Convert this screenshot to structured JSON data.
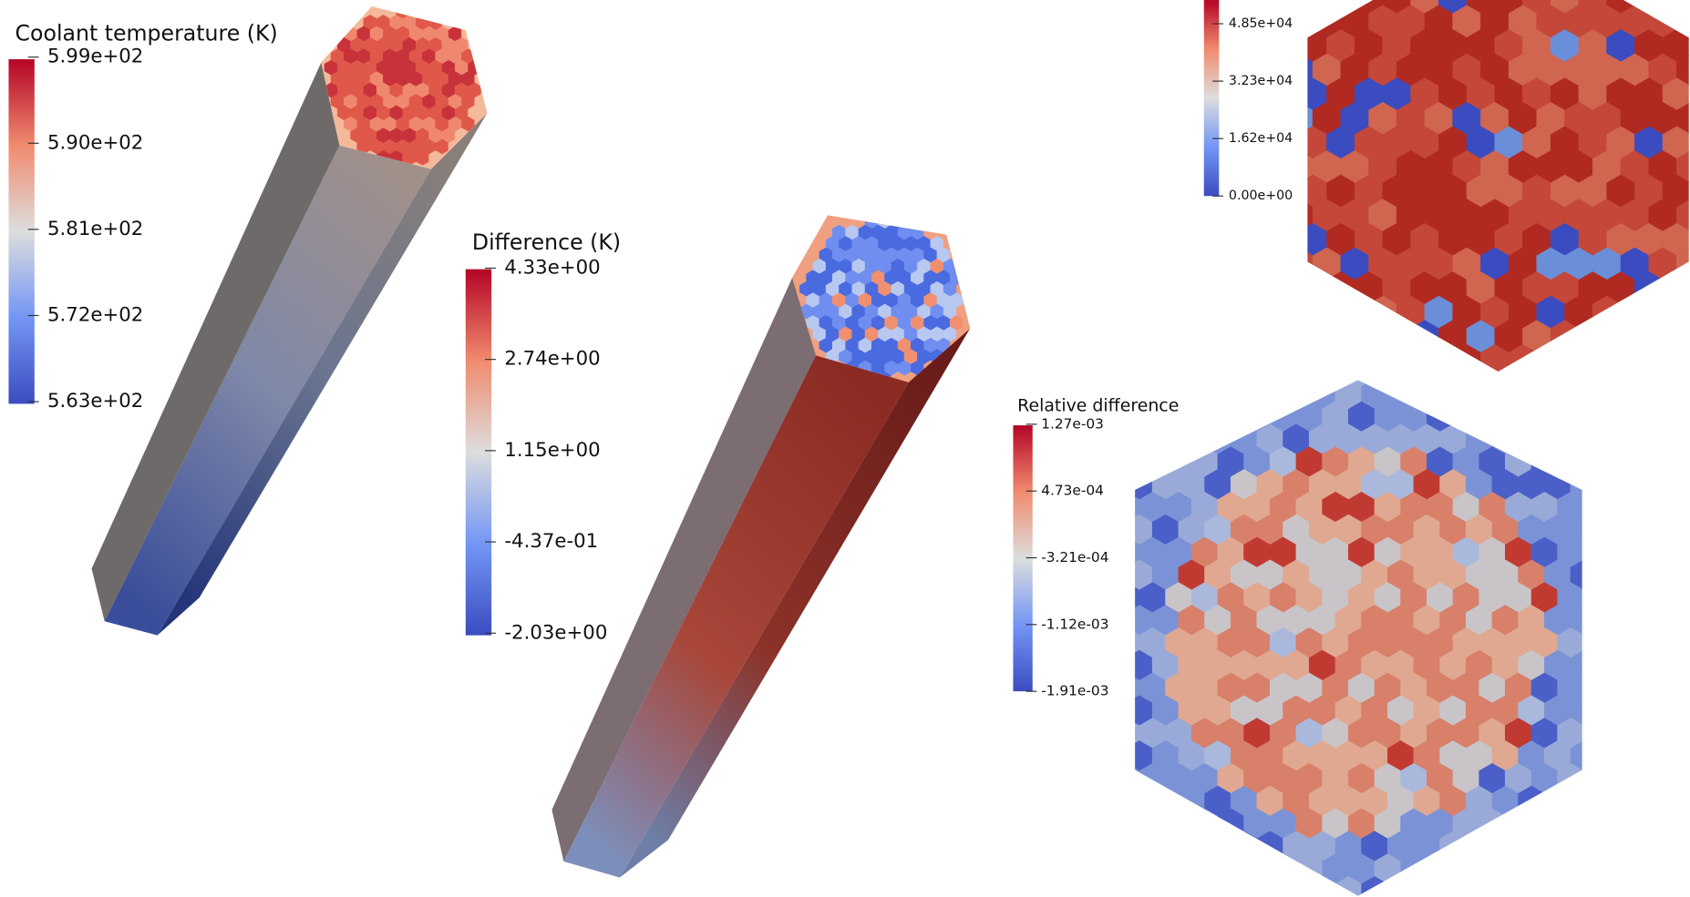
{
  "colorbars": [
    {
      "title": "Coolant temperature (K)",
      "ticks": [
        "5.99e+02",
        "5.90e+02",
        "5.81e+02",
        "5.72e+02",
        "5.63e+02"
      ]
    },
    {
      "title": "Difference (K)",
      "ticks": [
        "4.33e+00",
        "2.74e+00",
        "1.15e+00",
        "-4.37e-01",
        "-2.03e+00"
      ]
    },
    {
      "ticks": [
        "4.85e+04",
        "3.23e+04",
        "1.62e+04",
        "0.00e+00"
      ]
    },
    {
      "title": "Relative difference",
      "ticks": [
        "1.27e-03",
        "4.73e-04",
        "-3.21e-04",
        "-1.12e-03",
        "-1.91e-03"
      ]
    }
  ]
}
